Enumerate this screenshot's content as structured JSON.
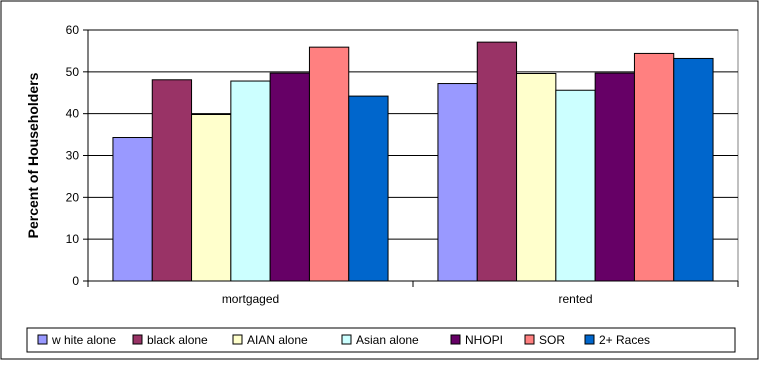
{
  "chart_data": {
    "type": "bar",
    "title": "",
    "xlabel": "",
    "ylabel": "Percent of Householders",
    "ylim": [
      0,
      60
    ],
    "yticks": [
      0,
      10,
      20,
      30,
      40,
      50,
      60
    ],
    "grid": true,
    "legend_position": "bottom",
    "categories": [
      "mortgaged",
      "rented"
    ],
    "series": [
      {
        "name": "w hite alone",
        "values": [
          34.3,
          47.2
        ],
        "color": "#9999ff"
      },
      {
        "name": "black alone",
        "values": [
          48.1,
          57.1
        ],
        "color": "#993366"
      },
      {
        "name": "AIAN alone",
        "values": [
          39.8,
          49.6
        ],
        "color": "#ffffcc"
      },
      {
        "name": "Asian alone",
        "values": [
          47.8,
          45.6
        ],
        "color": "#ccffff"
      },
      {
        "name": "NHOPI",
        "values": [
          49.7,
          49.7
        ],
        "color": "#660066"
      },
      {
        "name": "SOR",
        "values": [
          55.9,
          54.4
        ],
        "color": "#ff8080"
      },
      {
        "name": "2+ Races",
        "values": [
          44.2,
          53.2
        ],
        "color": "#0066cc"
      }
    ]
  }
}
